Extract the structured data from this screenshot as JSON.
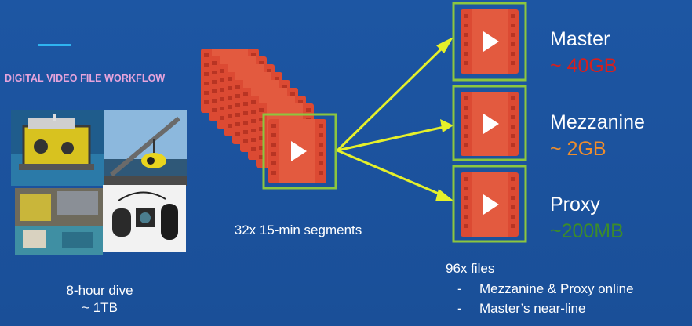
{
  "slide": {
    "title": "DIGITAL VIDEO FILE WORKFLOW",
    "dive_caption_line1": "8-hour dive",
    "dive_caption_line2": "~ 1TB",
    "segments_caption": "32x 15-min segments",
    "files_title": "96x files",
    "files_bullets": [
      "Mezzanine & Proxy online",
      "Master’s near-line"
    ],
    "bullet_marker": "-",
    "formats": [
      {
        "name": "Master",
        "size": "~ 40GB",
        "color": "#d71f1d"
      },
      {
        "name": "Mezzanine",
        "size": "~ 2GB",
        "color": "#ee8d2c"
      },
      {
        "name": "Proxy",
        "size": "~200MB",
        "color": "#3c8c2a"
      }
    ]
  },
  "colors": {
    "background": "#1d56a3",
    "film_red": "#dc4a33",
    "frame_green": "#8cc63f",
    "arrow_yellow": "#e5f02a",
    "title_pink": "#e7a4dc",
    "accent_line": "#2fb4f0"
  },
  "icons": [
    "video-file-icon",
    "play-icon",
    "rov-photo",
    "crane-photo",
    "lab-photo",
    "equipment-photo"
  ]
}
